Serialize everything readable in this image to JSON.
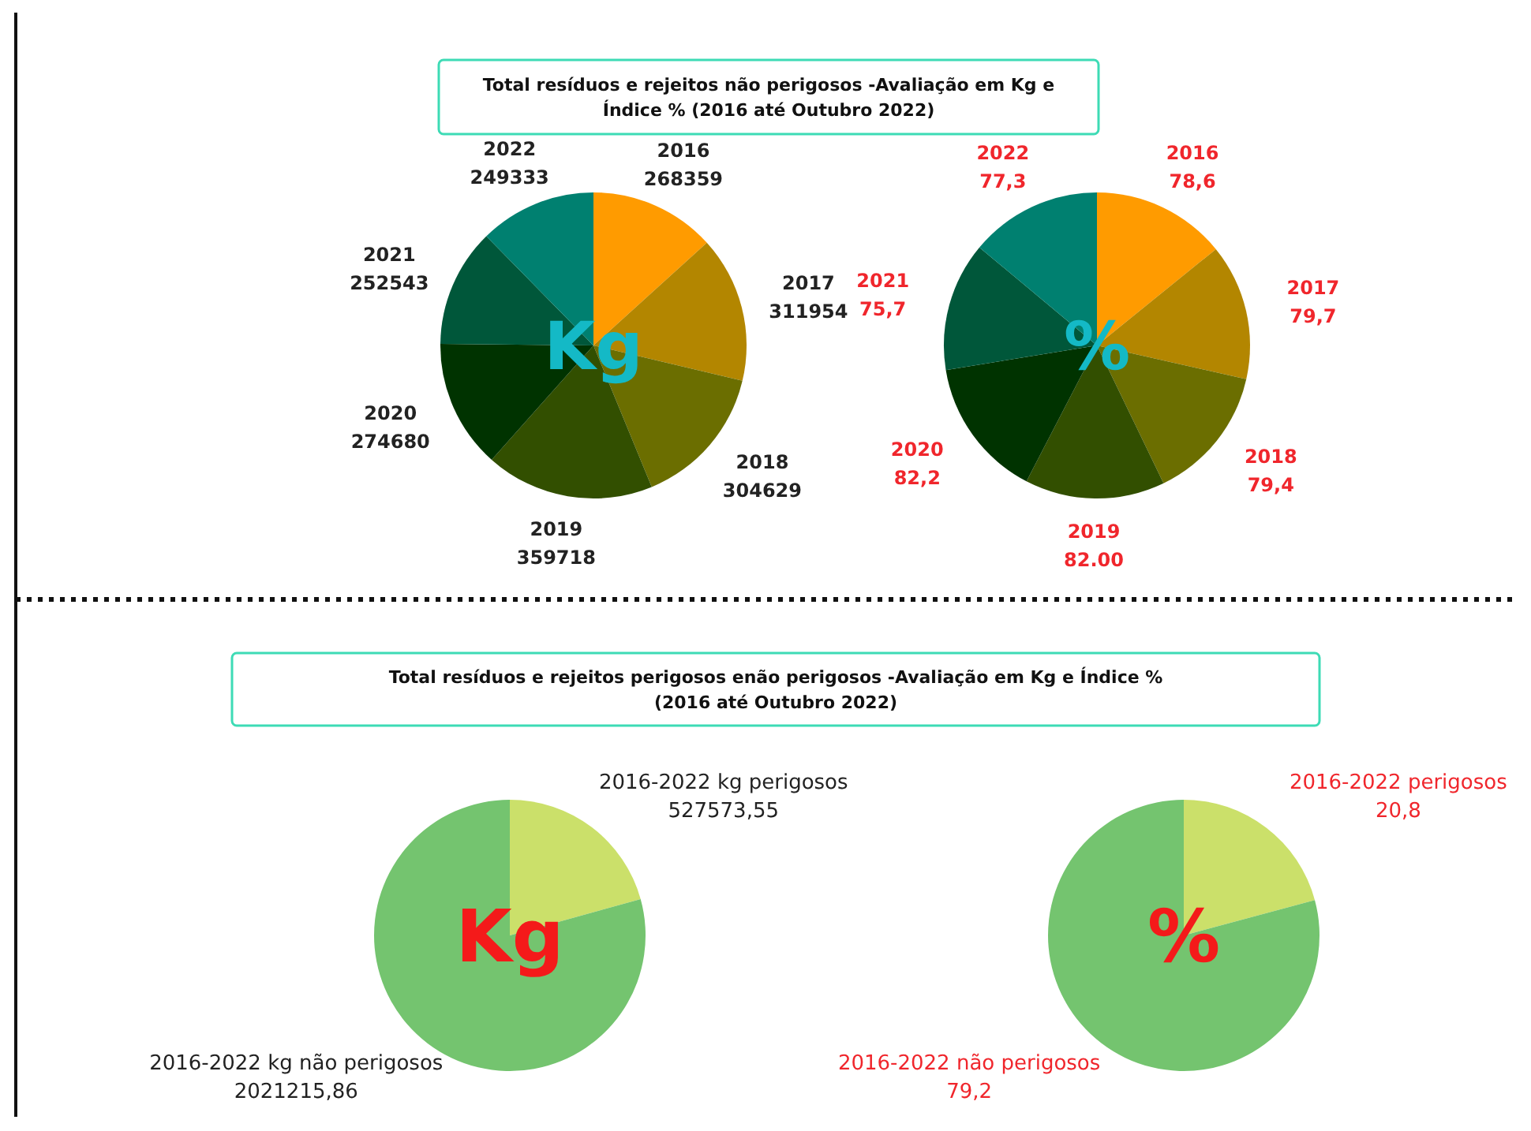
{
  "chart_data": [
    {
      "type": "pie",
      "title": "Total resíduos e rejeitos não perigosos -Avaliação em Kg e Índice % (2016 até Outubro 2022)",
      "categories": [
        "2016",
        "2017",
        "2018",
        "2019",
        "2020",
        "2021",
        "2022"
      ],
      "values": [
        268359,
        311954,
        304629,
        359718,
        274680,
        252543,
        249333
      ],
      "value_labels": [
        "268359",
        "311954",
        "304629",
        "359718",
        "274680",
        "252543",
        "249333"
      ],
      "colors": [
        "#ff9b00",
        "#b38600",
        "#6b6e00",
        "#324f00",
        "#003300",
        "#00573a",
        "#008070"
      ],
      "annotations": [
        "Kg"
      ]
    },
    {
      "type": "pie",
      "categories": [
        "2016",
        "2017",
        "2018",
        "2019",
        "2020",
        "2021",
        "2022"
      ],
      "values": [
        78.6,
        79.7,
        79.4,
        82.0,
        82.2,
        75.7,
        77.3
      ],
      "value_labels": [
        "78,6",
        "79,7",
        "79,4",
        "82.00",
        "82,2",
        "75,7",
        "77,3"
      ],
      "colors": [
        "#ff9b00",
        "#b38600",
        "#6b6e00",
        "#324f00",
        "#003300",
        "#00573a",
        "#008070"
      ],
      "annotations": [
        "%"
      ]
    },
    {
      "type": "pie",
      "title": "Total resíduos e rejeitos perigosos enão perigosos -Avaliação em Kg e Índice % (2016 até Outubro 2022)",
      "categories": [
        "2016-2022 kg perigosos",
        "2016-2022 kg não perigosos"
      ],
      "values": [
        527573.55,
        2021215.86
      ],
      "value_labels": [
        "527573,55",
        "2021215,86"
      ],
      "colors": [
        "#cbe06a",
        "#74c46f"
      ],
      "annotations": [
        "Kg"
      ]
    },
    {
      "type": "pie",
      "categories": [
        "2016-2022 perigosos",
        "2016-2022 não perigosos"
      ],
      "values": [
        20.8,
        79.2
      ],
      "value_labels": [
        "20,8",
        "79,2"
      ],
      "colors": [
        "#cbe06a",
        "#74c46f"
      ],
      "annotations": [
        "%"
      ]
    }
  ]
}
